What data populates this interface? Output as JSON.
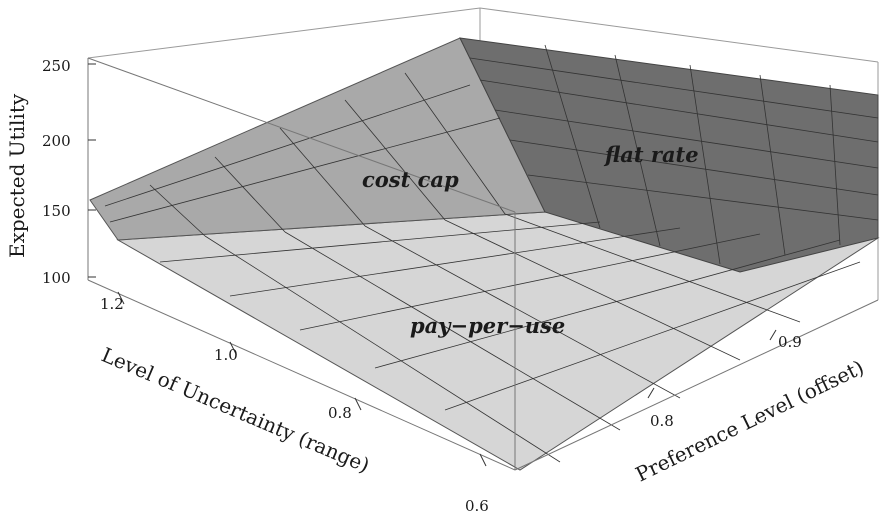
{
  "chart_data": {
    "type": "surface3d",
    "title": "",
    "zlabel": "Expected Utility",
    "xlabel": "Level of Uncertainty (range)",
    "ylabel": "Preference Level (offset)",
    "z_ticks": [
      "100",
      "150",
      "200",
      "250"
    ],
    "x_ticks": [
      "1.2",
      "1.0",
      "0.8",
      "0.6"
    ],
    "y_ticks": [
      "0.8",
      "0.9"
    ],
    "regions": [
      {
        "name": "cost cap",
        "shade": "#a9a9a9"
      },
      {
        "name": "flat rate",
        "shade": "#6e6e6e"
      },
      {
        "name": "pay−per−use",
        "shade": "#d6d6d6"
      }
    ],
    "approx_corner_values": [
      {
        "uncertainty": 1.25,
        "preference": 0.7,
        "expected_utility": 125
      },
      {
        "uncertainty": 1.25,
        "preference": 1.0,
        "expected_utility": 255
      },
      {
        "uncertainty": 0.6,
        "preference": 0.7,
        "expected_utility": 100
      },
      {
        "uncertainty": 0.6,
        "preference": 1.0,
        "expected_utility": 160
      }
    ]
  }
}
